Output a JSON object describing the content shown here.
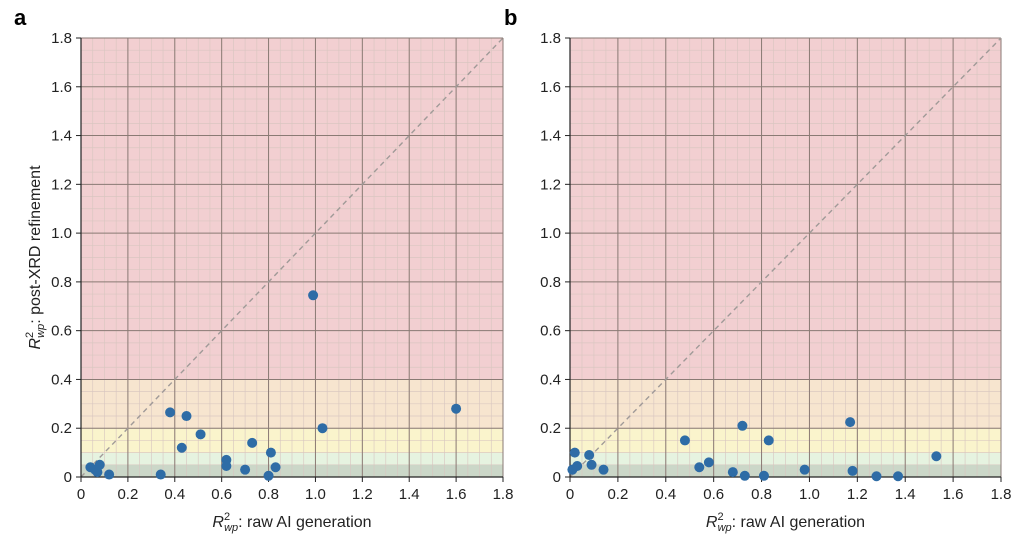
{
  "chart_data": [
    {
      "type": "scatter",
      "panel": "a",
      "xlabel": {
        "symbol": "R",
        "sup": "2",
        "sub": "wp",
        "text": ": raw AI generation"
      },
      "ylabel": {
        "symbol": "R",
        "sup": "2",
        "sub": "wp",
        "text": ": post-XRD refinement"
      },
      "xlim": [
        0,
        1.8
      ],
      "ylim": [
        0,
        1.8
      ],
      "xticks": [
        "0",
        "0.2",
        "0.4",
        "0.6",
        "0.8",
        "1.0",
        "1.2",
        "1.4",
        "1.6",
        "1.8"
      ],
      "yticks": [
        "0",
        "0.2",
        "0.4",
        "0.6",
        "0.8",
        "1.0",
        "1.2",
        "1.4",
        "1.6",
        "1.8"
      ],
      "grid": true,
      "diagonal": "y = x (dashed)",
      "bands": [
        {
          "from": 0.4,
          "to": 1.8,
          "color": "#f2cfd1"
        },
        {
          "from": 0.2,
          "to": 0.4,
          "color": "#f7e5cf"
        },
        {
          "from": 0.1,
          "to": 0.2,
          "color": "#faf4cc"
        },
        {
          "from": 0.05,
          "to": 0.1,
          "color": "#e6f3e0"
        },
        {
          "from": 0.0,
          "to": 0.05,
          "color": "#cbd7c8"
        }
      ],
      "point_color": "#2e6ca6",
      "points": [
        [
          0.04,
          0.04
        ],
        [
          0.06,
          0.03
        ],
        [
          0.07,
          0.02
        ],
        [
          0.08,
          0.05
        ],
        [
          0.12,
          0.01
        ],
        [
          0.34,
          0.01
        ],
        [
          0.38,
          0.265
        ],
        [
          0.43,
          0.12
        ],
        [
          0.45,
          0.25
        ],
        [
          0.51,
          0.175
        ],
        [
          0.62,
          0.07
        ],
        [
          0.62,
          0.045
        ],
        [
          0.7,
          0.03
        ],
        [
          0.73,
          0.14
        ],
        [
          0.8,
          0.005
        ],
        [
          0.81,
          0.1
        ],
        [
          0.83,
          0.04
        ],
        [
          0.99,
          0.745
        ],
        [
          1.03,
          0.2
        ],
        [
          1.6,
          0.28
        ]
      ]
    },
    {
      "type": "scatter",
      "panel": "b",
      "xlabel": {
        "symbol": "R",
        "sup": "2",
        "sub": "wp",
        "text": ": raw AI generation"
      },
      "ylabel": null,
      "xlim": [
        0,
        1.8
      ],
      "ylim": [
        0,
        1.8
      ],
      "xticks": [
        "0",
        "0.2",
        "0.4",
        "0.6",
        "0.8",
        "1.0",
        "1.2",
        "1.4",
        "1.6",
        "1.8"
      ],
      "yticks": [
        "0",
        "0.2",
        "0.4",
        "0.6",
        "0.8",
        "1.0",
        "1.2",
        "1.4",
        "1.6",
        "1.8"
      ],
      "grid": true,
      "diagonal": "y = x (dashed)",
      "bands": [
        {
          "from": 0.4,
          "to": 1.8,
          "color": "#f2cfd1"
        },
        {
          "from": 0.2,
          "to": 0.4,
          "color": "#f7e5cf"
        },
        {
          "from": 0.1,
          "to": 0.2,
          "color": "#faf4cc"
        },
        {
          "from": 0.05,
          "to": 0.1,
          "color": "#e6f3e0"
        },
        {
          "from": 0.0,
          "to": 0.05,
          "color": "#cbd7c8"
        }
      ],
      "point_color": "#2e6ca6",
      "points": [
        [
          0.01,
          0.03
        ],
        [
          0.02,
          0.1
        ],
        [
          0.03,
          0.045
        ],
        [
          0.08,
          0.09
        ],
        [
          0.09,
          0.05
        ],
        [
          0.14,
          0.03
        ],
        [
          0.48,
          0.15
        ],
        [
          0.54,
          0.04
        ],
        [
          0.58,
          0.06
        ],
        [
          0.68,
          0.02
        ],
        [
          0.72,
          0.21
        ],
        [
          0.73,
          0.005
        ],
        [
          0.81,
          0.005
        ],
        [
          0.83,
          0.15
        ],
        [
          0.98,
          0.03
        ],
        [
          1.17,
          0.225
        ],
        [
          1.18,
          0.025
        ],
        [
          1.28,
          0.003
        ],
        [
          1.37,
          0.003
        ],
        [
          1.53,
          0.085
        ]
      ]
    }
  ]
}
